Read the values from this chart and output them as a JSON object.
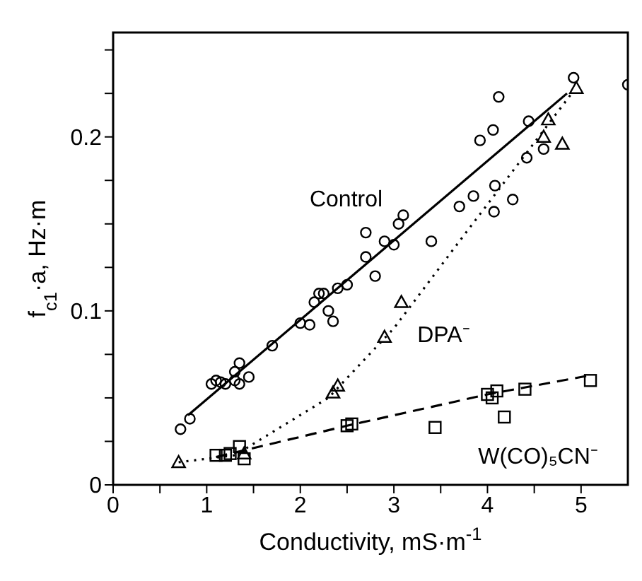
{
  "chart_data": {
    "type": "scatter",
    "xlabel": "Conductivity, mS·m$^{-1}$",
    "ylabel": "f$_{c1}$·a, Hz·m",
    "xlim": [
      0,
      5.5
    ],
    "xticks": [
      0,
      {
        "value": 0.5,
        "label": null
      },
      1,
      {
        "value": 1.5,
        "label": null
      },
      2,
      {
        "value": 2.5,
        "label": null
      },
      3,
      {
        "value": 3.5,
        "label": null
      },
      4,
      {
        "value": 4.5,
        "label": null
      },
      5
    ],
    "ylim": [
      0,
      0.26
    ],
    "yticks": [
      0,
      {
        "value": 0.025,
        "label": null
      },
      {
        "value": 0.05,
        "label": null
      },
      {
        "value": 0.075,
        "label": null
      },
      0.1,
      {
        "value": 0.125,
        "label": null
      },
      {
        "value": 0.15,
        "label": null
      },
      {
        "value": 0.175,
        "label": null
      },
      0.2,
      {
        "value": 0.225,
        "label": null
      },
      {
        "value": 0.25,
        "label": null
      }
    ],
    "series": [
      {
        "name": "Control",
        "marker": "circle",
        "color": "#000000",
        "x": [
          0.72,
          0.82,
          1.05,
          1.1,
          1.15,
          1.2,
          1.3,
          1.35,
          1.3,
          1.35,
          1.45,
          1.7,
          2.0,
          2.1,
          2.15,
          2.2,
          2.25,
          2.3,
          2.35,
          2.4,
          2.5,
          2.7,
          2.7,
          2.8,
          2.9,
          3.0,
          3.05,
          3.1,
          3.4,
          3.7,
          3.85,
          3.92,
          4.06,
          4.07,
          4.08,
          4.12,
          4.27,
          4.42,
          4.44,
          4.6,
          4.92,
          5.5
        ],
        "values": [
          0.032,
          0.038,
          0.058,
          0.06,
          0.059,
          0.058,
          0.06,
          0.058,
          0.065,
          0.07,
          0.062,
          0.08,
          0.093,
          0.092,
          0.105,
          0.11,
          0.11,
          0.1,
          0.094,
          0.113,
          0.115,
          0.131,
          0.145,
          0.12,
          0.14,
          0.138,
          0.15,
          0.155,
          0.14,
          0.16,
          0.166,
          0.198,
          0.204,
          0.157,
          0.172,
          0.223,
          0.164,
          0.188,
          0.209,
          0.193,
          0.234,
          0.23
        ]
      },
      {
        "name": "DPA⁻",
        "marker": "triangle",
        "color": "#000000",
        "x": [
          0.7,
          1.3,
          1.4,
          2.35,
          2.4,
          2.9,
          3.08,
          4.6,
          4.65,
          4.8,
          4.95
        ],
        "values": [
          0.013,
          null,
          0.018,
          0.053,
          0.057,
          0.085,
          0.105,
          0.2,
          0.21,
          0.196,
          0.228
        ]
      },
      {
        "name": "W(CO)₅CN⁻",
        "marker": "square",
        "color": "#000000",
        "x": [
          1.1,
          1.2,
          1.25,
          1.35,
          1.4,
          2.5,
          2.55,
          3.44,
          4.0,
          4.05,
          4.1,
          4.18,
          4.4,
          5.1
        ],
        "values": [
          0.017,
          0.017,
          0.018,
          0.022,
          0.015,
          0.034,
          0.035,
          0.033,
          0.052,
          0.05,
          0.054,
          0.039,
          0.055,
          0.06
        ]
      },
      {
        "type": "line",
        "marker": "none",
        "line_style": "solid",
        "color": "#000000",
        "x": [
          0.8,
          4.85
        ],
        "values": [
          0.04,
          0.225
        ]
      },
      {
        "type": "line",
        "marker": "none",
        "line_style": "dotted",
        "color": "#000000",
        "x": [
          0.7,
          1.3,
          2.3,
          3.0,
          3.7,
          4.9
        ],
        "values": [
          0.013,
          0.017,
          0.05,
          0.09,
          0.14,
          0.225
        ]
      },
      {
        "type": "line",
        "marker": "none",
        "line_style": "dashed",
        "color": "#000000",
        "x": [
          1.1,
          2.5,
          4.0,
          5.1
        ],
        "values": [
          0.016,
          0.034,
          0.052,
          0.063
        ]
      }
    ]
  }
}
